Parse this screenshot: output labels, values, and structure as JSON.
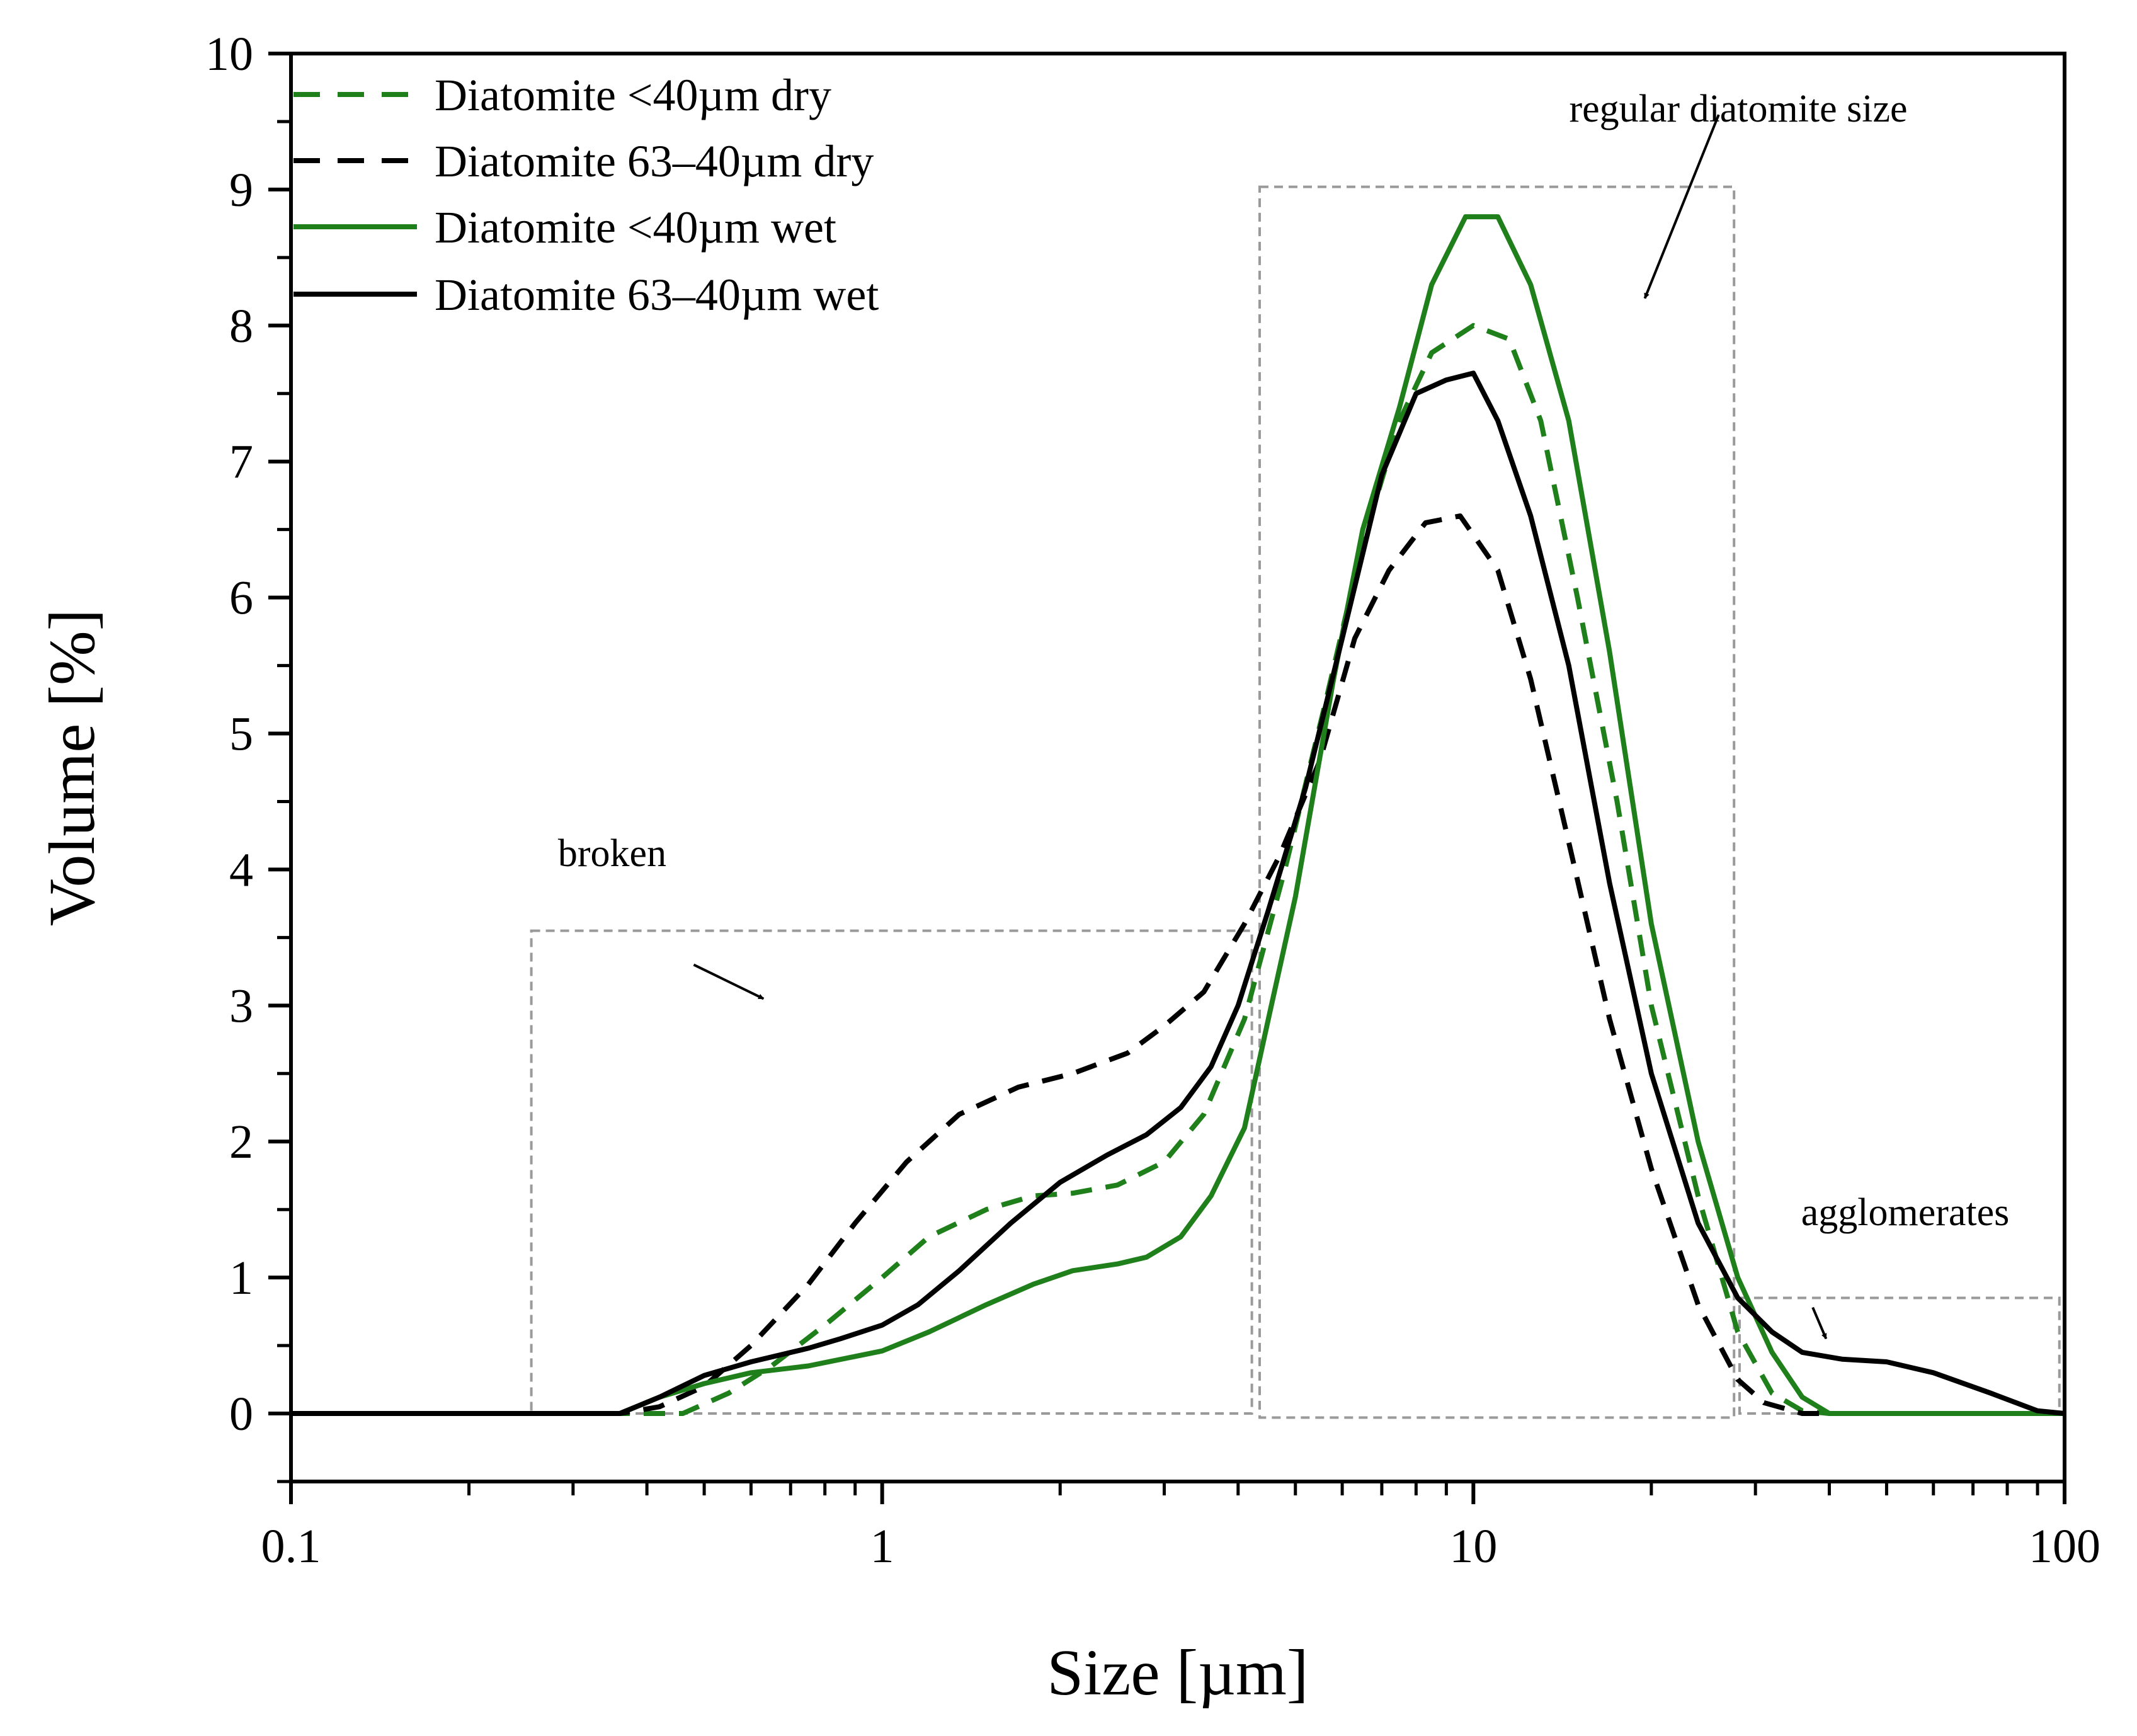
{
  "chart_data": {
    "type": "line",
    "title": "",
    "xlabel": "Size [µm]",
    "ylabel": "Volume [%]",
    "xscale": "log",
    "xlim": [
      0.1,
      100
    ],
    "ylim": [
      -0.5,
      10
    ],
    "xticks": [
      {
        "value": 0.1,
        "label": "0.1"
      },
      {
        "value": 1,
        "label": "1"
      },
      {
        "value": 10,
        "label": "10"
      },
      {
        "value": 100,
        "label": "100"
      }
    ],
    "yticks": [
      {
        "value": 0,
        "label": "0"
      },
      {
        "value": 1,
        "label": "1"
      },
      {
        "value": 2,
        "label": "2"
      },
      {
        "value": 3,
        "label": "3"
      },
      {
        "value": 4,
        "label": "4"
      },
      {
        "value": 5,
        "label": "5"
      },
      {
        "value": 6,
        "label": "6"
      },
      {
        "value": 7,
        "label": "7"
      },
      {
        "value": 8,
        "label": "8"
      },
      {
        "value": 9,
        "label": "9"
      },
      {
        "value": 10,
        "label": "10"
      }
    ],
    "legend_position": "top-left",
    "series": [
      {
        "name": "Diatomite <40µm dry",
        "color": "#1f7f1a",
        "dash": "dashed",
        "x": [
          0.1,
          0.36,
          0.46,
          0.55,
          0.65,
          0.8,
          1.0,
          1.2,
          1.5,
          1.8,
          2.1,
          2.5,
          3.0,
          3.5,
          4.1,
          4.8,
          5.6,
          6.5,
          7.5,
          8.5,
          10.0,
          11.5,
          13.0,
          15.0,
          17.5,
          20.0,
          24.0,
          28.0,
          32.0,
          36.0,
          40.0,
          60.0,
          100.0
        ],
        "y": [
          0,
          0,
          0,
          0.15,
          0.35,
          0.65,
          1.0,
          1.3,
          1.5,
          1.6,
          1.62,
          1.68,
          1.85,
          2.2,
          2.9,
          4.0,
          5.2,
          6.4,
          7.3,
          7.8,
          8.0,
          7.9,
          7.3,
          6.0,
          4.5,
          3.0,
          1.6,
          0.6,
          0.15,
          0.02,
          0,
          0,
          0
        ]
      },
      {
        "name": "Diatomite 63–40µm dry",
        "color": "#000000",
        "dash": "dashed",
        "x": [
          0.1,
          0.36,
          0.42,
          0.5,
          0.6,
          0.75,
          0.9,
          1.1,
          1.35,
          1.7,
          2.1,
          2.6,
          3.0,
          3.5,
          4.1,
          4.7,
          5.5,
          6.3,
          7.2,
          8.3,
          9.5,
          11.0,
          12.5,
          14.5,
          17.0,
          20.0,
          24.0,
          28.0,
          31.0,
          36.0,
          100.0
        ],
        "y": [
          0,
          0,
          0.05,
          0.2,
          0.5,
          0.95,
          1.4,
          1.85,
          2.2,
          2.4,
          2.5,
          2.65,
          2.85,
          3.1,
          3.6,
          4.1,
          4.8,
          5.7,
          6.2,
          6.55,
          6.6,
          6.2,
          5.4,
          4.2,
          2.9,
          1.8,
          0.8,
          0.25,
          0.08,
          0,
          0
        ]
      },
      {
        "name": "Diatomite <40µm wet",
        "color": "#1f7f1a",
        "dash": "solid",
        "x": [
          0.1,
          0.36,
          0.42,
          0.5,
          0.6,
          0.75,
          0.9,
          1.0,
          1.2,
          1.5,
          1.8,
          2.1,
          2.5,
          2.8,
          3.2,
          3.6,
          4.1,
          4.5,
          5.0,
          5.8,
          6.5,
          7.5,
          8.5,
          9.7,
          11.0,
          12.5,
          14.5,
          17.0,
          20.0,
          24.0,
          28.0,
          32.0,
          36.0,
          40.0,
          60.0,
          100.0
        ],
        "y": [
          0,
          0,
          0.12,
          0.22,
          0.3,
          0.35,
          0.42,
          0.46,
          0.6,
          0.8,
          0.95,
          1.05,
          1.1,
          1.15,
          1.3,
          1.6,
          2.1,
          2.9,
          3.8,
          5.4,
          6.5,
          7.4,
          8.3,
          8.8,
          8.8,
          8.3,
          7.3,
          5.6,
          3.6,
          2.0,
          1.0,
          0.45,
          0.12,
          0,
          0,
          0
        ]
      },
      {
        "name": "Diatomite 63–40µm wet",
        "color": "#000000",
        "dash": "solid",
        "x": [
          0.1,
          0.36,
          0.42,
          0.5,
          0.6,
          0.75,
          0.85,
          1.0,
          1.15,
          1.35,
          1.65,
          2.0,
          2.4,
          2.8,
          3.2,
          3.6,
          4.0,
          4.5,
          5.2,
          6.0,
          7.0,
          8.0,
          9.0,
          10.0,
          11.0,
          12.5,
          14.5,
          17.0,
          20.0,
          24.0,
          28.0,
          32.0,
          36.0,
          42.0,
          50.0,
          60.0,
          75.0,
          90.0,
          100.0
        ],
        "y": [
          0,
          0,
          0.12,
          0.28,
          0.38,
          0.48,
          0.55,
          0.65,
          0.8,
          1.05,
          1.4,
          1.7,
          1.9,
          2.05,
          2.25,
          2.55,
          3.0,
          3.7,
          4.6,
          5.7,
          6.9,
          7.5,
          7.6,
          7.65,
          7.3,
          6.6,
          5.5,
          3.9,
          2.5,
          1.4,
          0.85,
          0.6,
          0.45,
          0.4,
          0.38,
          0.3,
          0.15,
          0.02,
          0
        ]
      }
    ],
    "annotations": [
      {
        "text": "broken",
        "box": {
          "x0": 0.255,
          "x1": 4.22,
          "y0": 0,
          "y1": 3.55
        },
        "arrow_from": [
          0.48,
          3.3
        ],
        "arrow_to": [
          0.63,
          3.05
        ]
      },
      {
        "text": "regular diatomite size",
        "box": {
          "x0": 4.35,
          "x1": 27.6,
          "y0": -0.03,
          "y1": 9.02
        },
        "arrow_from": [
          26.0,
          9.55
        ],
        "arrow_to": [
          19.5,
          8.2
        ]
      },
      {
        "text": "agglomerates",
        "box": {
          "x0": 28.2,
          "x1": 98.0,
          "y0": 0,
          "y1": 0.85
        },
        "arrow_from": [
          37.5,
          0.78
        ],
        "arrow_to": [
          39.5,
          0.55
        ]
      }
    ]
  }
}
